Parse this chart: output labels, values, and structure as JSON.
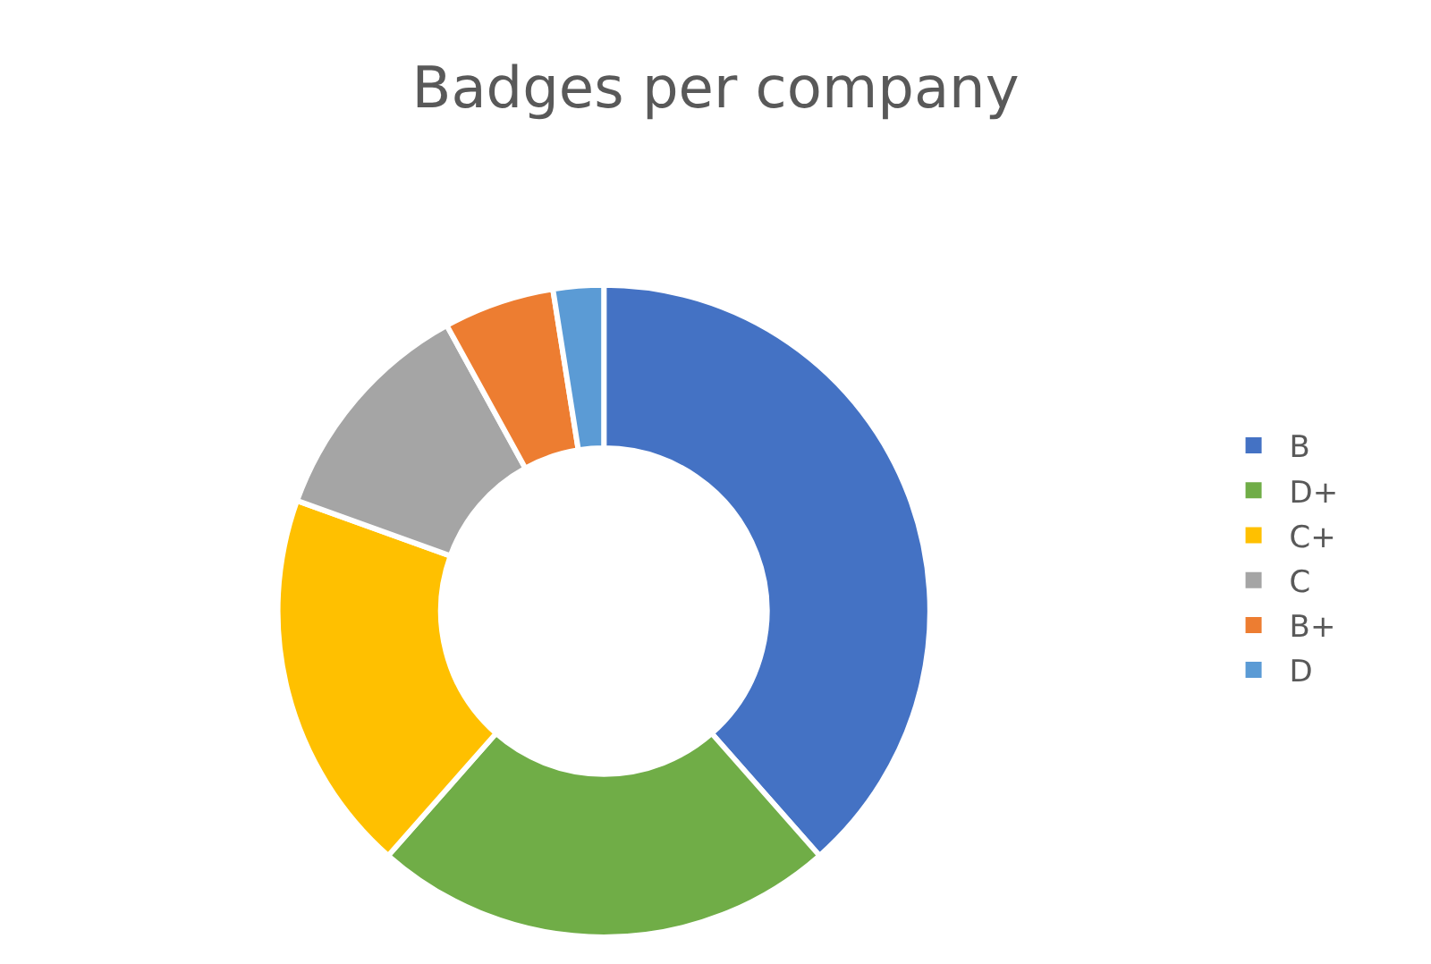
{
  "chart_data": {
    "type": "donut",
    "title": "Badges per company",
    "categories": [
      "B",
      "D+",
      "C+",
      "C",
      "B+",
      "D"
    ],
    "values": [
      38.5,
      23,
      19,
      11.5,
      5.5,
      2.5
    ],
    "colors": [
      "#4472c4",
      "#70ad47",
      "#ffc000",
      "#a5a5a5",
      "#ed7d31",
      "#5b9bd5"
    ],
    "legend": "right"
  }
}
